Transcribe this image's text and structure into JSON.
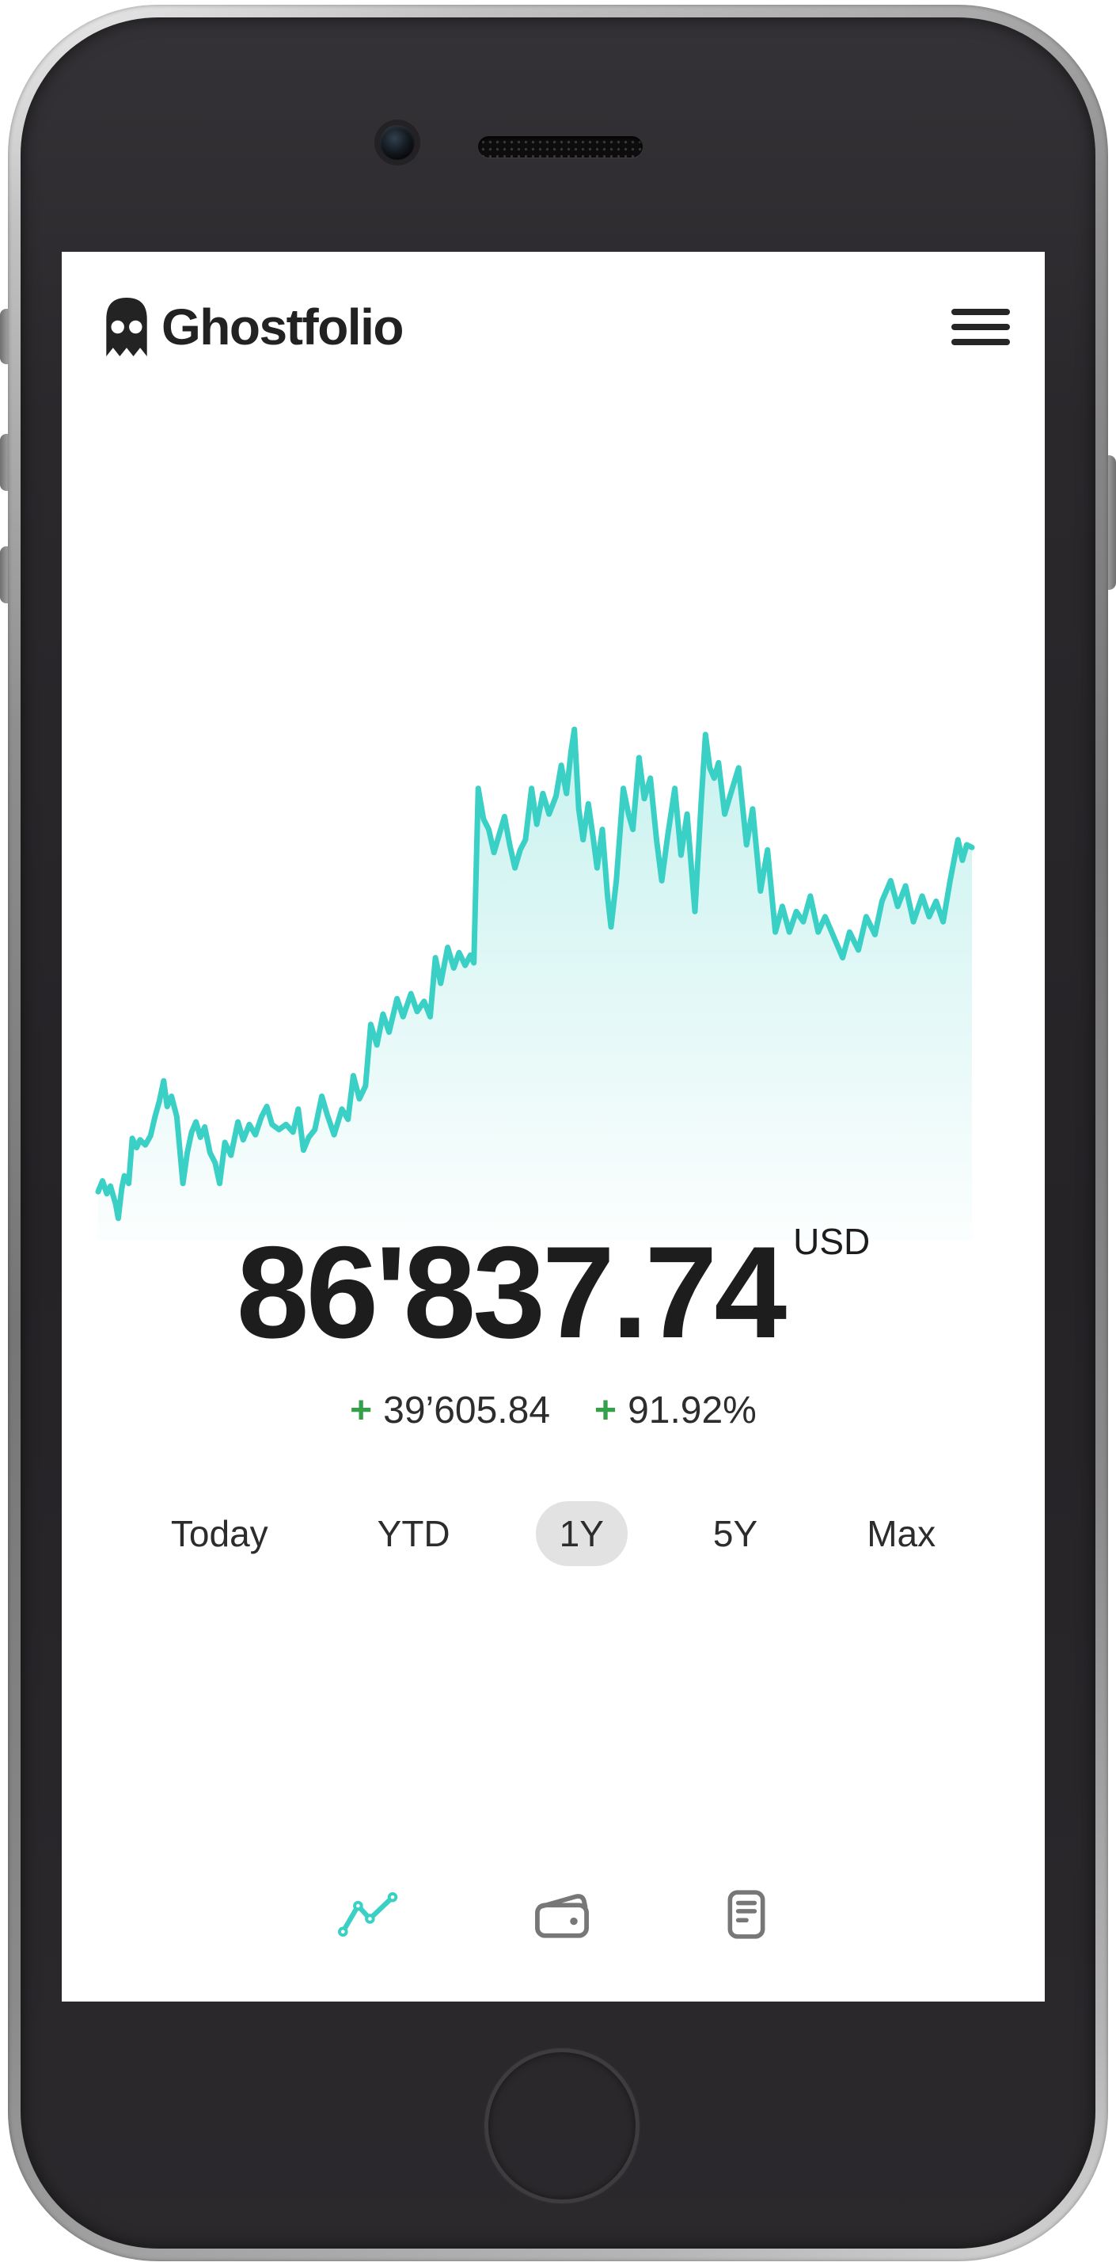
{
  "header": {
    "logo_text": "Ghostfolio"
  },
  "summary": {
    "value": "86'837.74",
    "currency": "USD",
    "change_sign": "+",
    "change_absolute": "39’605.84",
    "change_percent": "91.92%"
  },
  "ranges": {
    "options": [
      "Today",
      "YTD",
      "1Y",
      "5Y",
      "Max"
    ],
    "selected": "1Y"
  },
  "bottom_nav": {
    "items": [
      {
        "icon": "line-chart-icon",
        "active": true
      },
      {
        "icon": "wallet-icon",
        "active": false
      },
      {
        "icon": "document-icon",
        "active": false
      }
    ]
  },
  "chart_data": {
    "type": "area",
    "title": "Portfolio performance, 1Y range",
    "x_axis": "hidden (time, 1 year)",
    "y_axis": "hidden (portfolio value, ends at 86'837.74 USD, +91.92% over range)",
    "legend": "none",
    "grid": false,
    "series": [
      {
        "name": "portfolio-value",
        "points_are": "[x percent of width, y percent from top]",
        "points": [
          [
            0,
            90.6
          ],
          [
            0.5,
            88.5
          ],
          [
            1,
            91
          ],
          [
            1.4,
            89.5
          ],
          [
            2,
            93
          ],
          [
            2.3,
            95.8
          ],
          [
            2.7,
            90
          ],
          [
            3,
            87.5
          ],
          [
            3.5,
            89
          ],
          [
            3.9,
            80.2
          ],
          [
            4.4,
            82
          ],
          [
            4.8,
            80.5
          ],
          [
            5.4,
            81.5
          ],
          [
            6,
            79.7
          ],
          [
            6.5,
            76
          ],
          [
            7,
            73
          ],
          [
            7.5,
            69
          ],
          [
            7.9,
            74
          ],
          [
            8.4,
            72
          ],
          [
            9,
            76
          ],
          [
            9.7,
            89
          ],
          [
            10.2,
            83
          ],
          [
            10.7,
            79
          ],
          [
            11.2,
            77
          ],
          [
            11.7,
            80
          ],
          [
            12.2,
            78
          ],
          [
            12.8,
            83
          ],
          [
            13.4,
            85
          ],
          [
            13.9,
            89
          ],
          [
            14.5,
            81
          ],
          [
            15.2,
            83.5
          ],
          [
            16,
            77
          ],
          [
            16.6,
            80.5
          ],
          [
            17.3,
            77.5
          ],
          [
            18,
            79.5
          ],
          [
            18.7,
            76
          ],
          [
            19.3,
            74
          ],
          [
            19.9,
            77.5
          ],
          [
            20.7,
            78.5
          ],
          [
            21.5,
            77.5
          ],
          [
            22.3,
            79
          ],
          [
            22.9,
            74.5
          ],
          [
            23.5,
            82.5
          ],
          [
            24.1,
            80
          ],
          [
            24.8,
            78.5
          ],
          [
            25.6,
            72
          ],
          [
            26.2,
            75.5
          ],
          [
            27,
            79.5
          ],
          [
            27.9,
            74.5
          ],
          [
            28.6,
            76.5
          ],
          [
            29.2,
            68
          ],
          [
            29.9,
            72.5
          ],
          [
            30.6,
            70
          ],
          [
            31.2,
            58
          ],
          [
            31.9,
            62
          ],
          [
            32.6,
            56
          ],
          [
            33.3,
            59.5
          ],
          [
            34.2,
            53
          ],
          [
            34.9,
            56.5
          ],
          [
            35.8,
            52
          ],
          [
            36.5,
            55.5
          ],
          [
            37.3,
            53.5
          ],
          [
            38,
            56.5
          ],
          [
            38.6,
            45
          ],
          [
            39.2,
            50
          ],
          [
            40,
            43
          ],
          [
            40.7,
            47
          ],
          [
            41.3,
            44
          ],
          [
            42,
            46.5
          ],
          [
            42.6,
            44.5
          ],
          [
            43,
            46
          ],
          [
            43.5,
            12
          ],
          [
            44.1,
            18
          ],
          [
            44.7,
            20
          ],
          [
            45.3,
            24.5
          ],
          [
            45.9,
            21
          ],
          [
            46.5,
            17.5
          ],
          [
            47.1,
            23
          ],
          [
            47.7,
            27.5
          ],
          [
            48.3,
            24
          ],
          [
            48.9,
            22
          ],
          [
            49.6,
            12
          ],
          [
            50.2,
            19
          ],
          [
            50.9,
            13
          ],
          [
            51.6,
            17
          ],
          [
            52.4,
            13.5
          ],
          [
            53,
            7.5
          ],
          [
            53.6,
            13
          ],
          [
            54.1,
            5
          ],
          [
            54.5,
            0.5
          ],
          [
            55,
            16
          ],
          [
            55.5,
            22
          ],
          [
            56.1,
            15
          ],
          [
            56.6,
            21
          ],
          [
            57.1,
            27.5
          ],
          [
            57.7,
            20
          ],
          [
            58.3,
            33
          ],
          [
            58.7,
            39
          ],
          [
            59.3,
            30
          ],
          [
            60.1,
            12
          ],
          [
            60.7,
            17
          ],
          [
            61.2,
            20
          ],
          [
            61.9,
            6
          ],
          [
            62.5,
            14
          ],
          [
            63.2,
            10
          ],
          [
            63.9,
            22
          ],
          [
            64.5,
            30
          ],
          [
            65.2,
            21
          ],
          [
            66,
            12
          ],
          [
            66.7,
            25
          ],
          [
            67.4,
            17
          ],
          [
            68.3,
            36
          ],
          [
            69,
            15
          ],
          [
            69.5,
            1.5
          ],
          [
            70,
            8
          ],
          [
            70.5,
            10
          ],
          [
            71,
            7
          ],
          [
            71.7,
            17
          ],
          [
            72.4,
            13
          ],
          [
            73.3,
            8
          ],
          [
            74.2,
            23
          ],
          [
            74.9,
            16
          ],
          [
            75.8,
            32
          ],
          [
            76.6,
            24
          ],
          [
            77.5,
            40
          ],
          [
            78.3,
            35
          ],
          [
            79.1,
            40
          ],
          [
            79.9,
            36
          ],
          [
            80.7,
            38
          ],
          [
            81.5,
            33
          ],
          [
            82.4,
            40
          ],
          [
            83.2,
            37
          ],
          [
            84.2,
            41
          ],
          [
            85.2,
            45
          ],
          [
            86,
            40
          ],
          [
            87,
            43.5
          ],
          [
            87.9,
            37
          ],
          [
            88.9,
            40.5
          ],
          [
            89.7,
            34
          ],
          [
            90.7,
            30
          ],
          [
            91.5,
            35
          ],
          [
            92.4,
            31
          ],
          [
            93.3,
            38
          ],
          [
            94.3,
            33
          ],
          [
            95.1,
            37
          ],
          [
            95.9,
            34
          ],
          [
            96.7,
            38
          ],
          [
            97.5,
            30
          ],
          [
            98.4,
            22
          ],
          [
            98.9,
            26
          ],
          [
            99.4,
            23
          ],
          [
            100,
            23.5
          ]
        ]
      }
    ]
  },
  "colors": {
    "accent": "#3bd0c5",
    "positive": "#34a04a",
    "text": "#222222",
    "text_strong": "#1d1d1d",
    "text_soft": "#2d2d2d",
    "pill_bg": "#e2e2e2",
    "nav_inactive": "#777777"
  }
}
